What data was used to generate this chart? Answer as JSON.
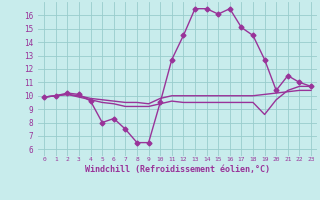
{
  "xlabel": "Windchill (Refroidissement éolien,°C)",
  "x_values": [
    0,
    1,
    2,
    3,
    4,
    5,
    6,
    7,
    8,
    9,
    10,
    11,
    12,
    13,
    14,
    15,
    16,
    17,
    18,
    19,
    20,
    21,
    22,
    23
  ],
  "line1": [
    9.9,
    10.0,
    10.2,
    10.1,
    9.6,
    8.0,
    8.3,
    7.5,
    6.5,
    6.5,
    9.5,
    12.7,
    14.5,
    16.5,
    16.5,
    16.1,
    16.5,
    15.1,
    14.5,
    12.7,
    10.4,
    11.5,
    11.0,
    10.7
  ],
  "line2": [
    9.9,
    10.0,
    10.1,
    10.0,
    9.8,
    9.7,
    9.6,
    9.5,
    9.5,
    9.4,
    9.8,
    10.0,
    10.0,
    10.0,
    10.0,
    10.0,
    10.0,
    10.0,
    10.0,
    10.1,
    10.2,
    10.3,
    10.4,
    10.4
  ],
  "line3": [
    9.9,
    10.0,
    10.1,
    9.9,
    9.7,
    9.5,
    9.4,
    9.2,
    9.2,
    9.2,
    9.4,
    9.6,
    9.5,
    9.5,
    9.5,
    9.5,
    9.5,
    9.5,
    9.5,
    8.6,
    9.7,
    10.4,
    10.7,
    10.7
  ],
  "ylim": [
    5.5,
    17.0
  ],
  "yticks": [
    6,
    7,
    8,
    9,
    10,
    11,
    12,
    13,
    14,
    15,
    16
  ],
  "line_color": "#993399",
  "bg_color": "#c8ecec",
  "grid_color": "#99cccc",
  "marker": "D",
  "marker_size": 2.5,
  "line_width": 1.0
}
